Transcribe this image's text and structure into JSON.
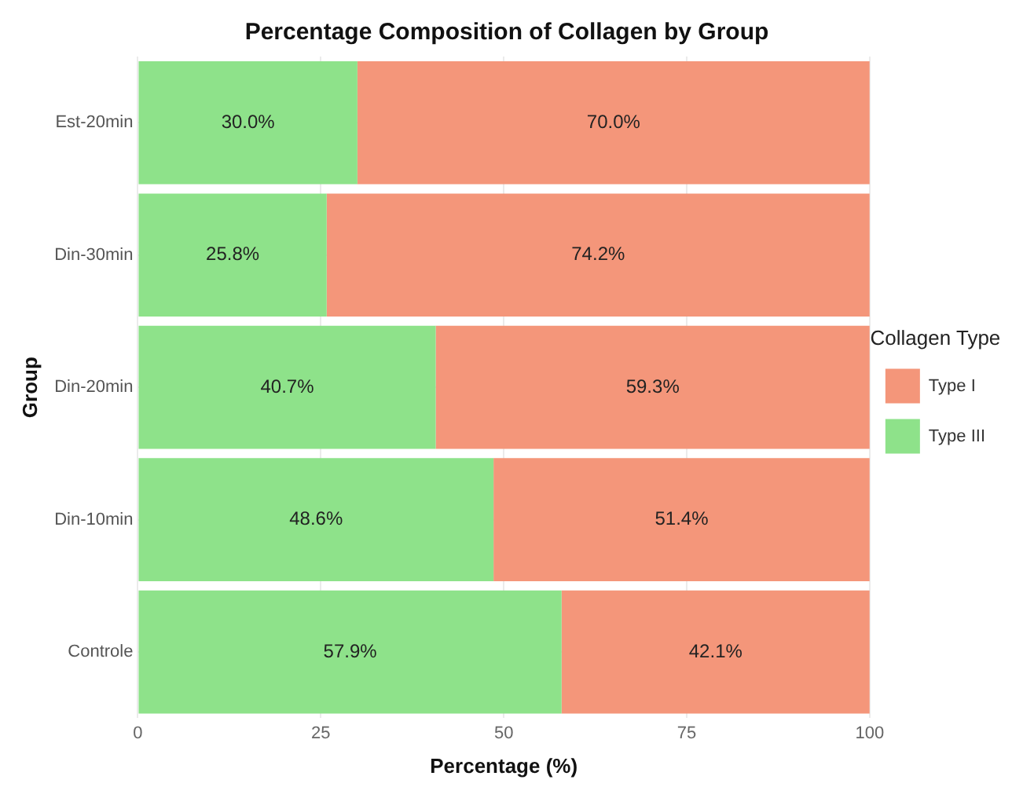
{
  "chart_data": {
    "type": "bar",
    "orientation": "horizontal",
    "stacked": true,
    "title": "Percentage Composition of Collagen by Group",
    "xlabel": "Percentage (%)",
    "ylabel": "Group",
    "legend_title": "Collagen Type",
    "legend": "right",
    "grid": true,
    "categories": [
      "Est-20min",
      "Din-30min",
      "Din-20min",
      "Din-10min",
      "Controle"
    ],
    "xlim": [
      0,
      100
    ],
    "xticks": [
      0,
      25,
      50,
      75,
      100
    ],
    "series": [
      {
        "name": "Type III",
        "color": "#8ee28a",
        "values": [
          30.0,
          25.8,
          40.7,
          48.6,
          57.9
        ],
        "value_labels": [
          "30.0%",
          "25.8%",
          "40.7%",
          "48.6%",
          "57.9%"
        ]
      },
      {
        "name": "Type I",
        "color": "#f4967a",
        "values": [
          70.0,
          74.2,
          59.3,
          51.4,
          42.1
        ],
        "value_labels": [
          "70.0%",
          "74.2%",
          "59.3%",
          "51.4%",
          "42.1%"
        ]
      }
    ]
  }
}
